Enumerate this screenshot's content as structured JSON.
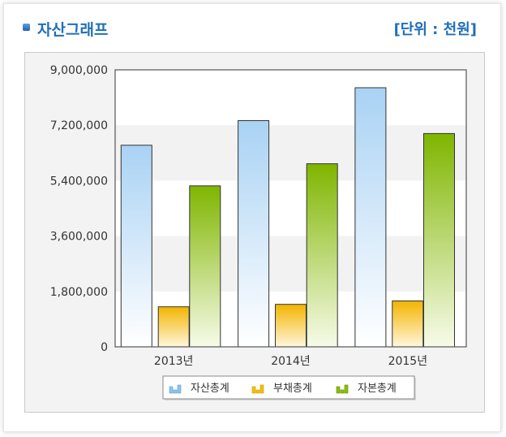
{
  "header": {
    "title": "자산그래프",
    "unit": "[단위 : 천원]"
  },
  "chart_data": {
    "type": "bar",
    "categories": [
      "2013년",
      "2014년",
      "2015년"
    ],
    "series": [
      {
        "name": "자산총계",
        "values": [
          6550000,
          7350000,
          8420000
        ],
        "color": "#8fc3ee"
      },
      {
        "name": "부채총계",
        "values": [
          1300000,
          1380000,
          1490000
        ],
        "color": "#f5b400"
      },
      {
        "name": "자본총계",
        "values": [
          5230000,
          5950000,
          6930000
        ],
        "color": "#7fb500"
      }
    ],
    "ylim": [
      0,
      9000000
    ],
    "yticks": [
      "0",
      "1,800,000",
      "3,600,000",
      "5,400,000",
      "7,200,000",
      "9,000,000"
    ],
    "grid": "alternating bands",
    "legend": "bottom-center"
  }
}
